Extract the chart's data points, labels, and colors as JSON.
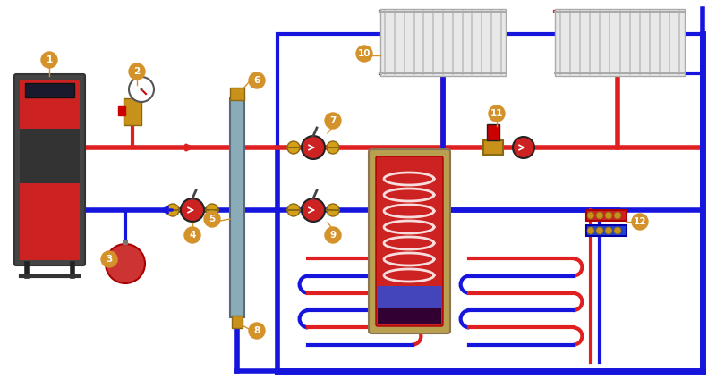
{
  "bg": "#ffffff",
  "red": "#e02020",
  "blue": "#1515dd",
  "gold": "#d4922a",
  "gray_sep": "#9aabba",
  "pipe_lw": 4,
  "border_lw": 3
}
